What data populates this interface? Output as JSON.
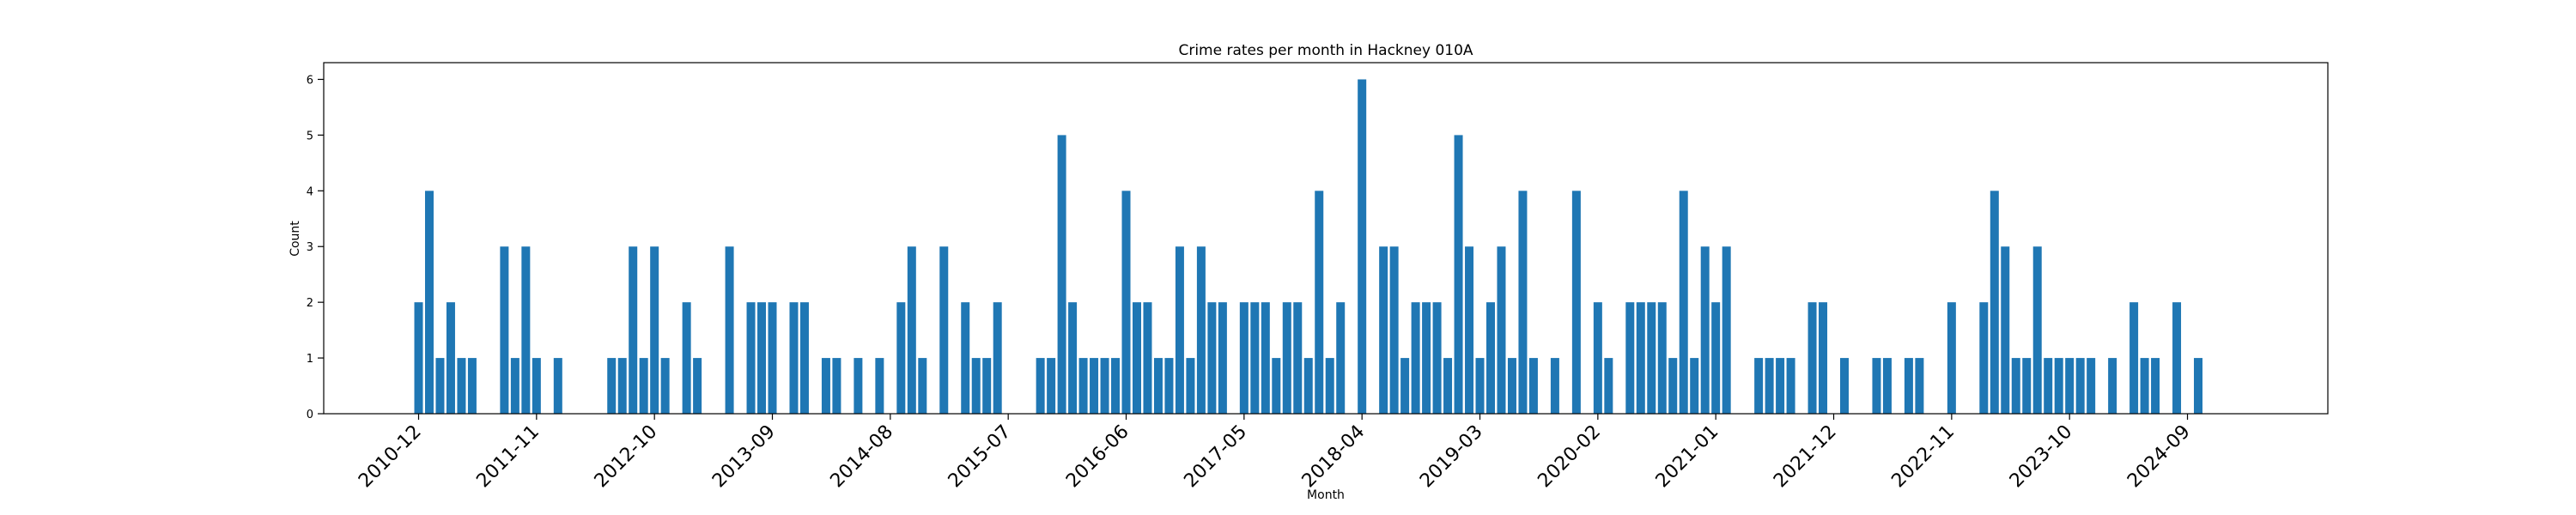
{
  "chart_data": {
    "type": "bar",
    "title": "Crime rates per month in Hackney 010A",
    "xlabel": "Month",
    "ylabel": "Count",
    "ylim": [
      0,
      6.3
    ],
    "yticks": [
      0,
      1,
      2,
      3,
      4,
      5,
      6
    ],
    "xticks": [
      "2010-12",
      "2011-11",
      "2012-10",
      "2013-09",
      "2014-08",
      "2015-07",
      "2016-06",
      "2017-05",
      "2018-04",
      "2019-03",
      "2020-02",
      "2021-01",
      "2021-12",
      "2022-11",
      "2023-10",
      "2024-09"
    ],
    "color": "#1f77b4",
    "grid": false,
    "series": [
      {
        "values": [
          [
            "2010-12",
            2
          ],
          [
            "2011-01",
            4
          ],
          [
            "2011-02",
            1
          ],
          [
            "2011-03",
            2
          ],
          [
            "2011-04",
            1
          ],
          [
            "2011-05",
            1
          ],
          [
            "2011-08",
            3
          ],
          [
            "2011-09",
            1
          ],
          [
            "2011-10",
            3
          ],
          [
            "2011-11",
            1
          ],
          [
            "2012-01",
            1
          ],
          [
            "2012-06",
            1
          ],
          [
            "2012-07",
            1
          ],
          [
            "2012-08",
            3
          ],
          [
            "2012-09",
            1
          ],
          [
            "2012-10",
            3
          ],
          [
            "2012-11",
            1
          ],
          [
            "2013-01",
            2
          ],
          [
            "2013-02",
            1
          ],
          [
            "2013-05",
            3
          ],
          [
            "2013-07",
            2
          ],
          [
            "2013-08",
            2
          ],
          [
            "2013-09",
            2
          ],
          [
            "2013-11",
            2
          ],
          [
            "2013-12",
            2
          ],
          [
            "2014-02",
            1
          ],
          [
            "2014-03",
            1
          ],
          [
            "2014-05",
            1
          ],
          [
            "2014-07",
            1
          ],
          [
            "2014-09",
            2
          ],
          [
            "2014-10",
            3
          ],
          [
            "2014-11",
            1
          ],
          [
            "2015-01",
            3
          ],
          [
            "2015-03",
            2
          ],
          [
            "2015-04",
            1
          ],
          [
            "2015-05",
            1
          ],
          [
            "2015-06",
            2
          ],
          [
            "2015-10",
            1
          ],
          [
            "2015-11",
            1
          ],
          [
            "2015-12",
            5
          ],
          [
            "2016-01",
            2
          ],
          [
            "2016-02",
            1
          ],
          [
            "2016-03",
            1
          ],
          [
            "2016-04",
            1
          ],
          [
            "2016-05",
            1
          ],
          [
            "2016-06",
            4
          ],
          [
            "2016-07",
            2
          ],
          [
            "2016-08",
            2
          ],
          [
            "2016-09",
            1
          ],
          [
            "2016-10",
            1
          ],
          [
            "2016-11",
            3
          ],
          [
            "2016-12",
            1
          ],
          [
            "2017-01",
            3
          ],
          [
            "2017-02",
            2
          ],
          [
            "2017-03",
            2
          ],
          [
            "2017-05",
            2
          ],
          [
            "2017-06",
            2
          ],
          [
            "2017-07",
            2
          ],
          [
            "2017-08",
            1
          ],
          [
            "2017-09",
            2
          ],
          [
            "2017-10",
            2
          ],
          [
            "2017-11",
            1
          ],
          [
            "2017-12",
            4
          ],
          [
            "2018-01",
            1
          ],
          [
            "2018-02",
            2
          ],
          [
            "2018-04",
            6
          ],
          [
            "2018-06",
            3
          ],
          [
            "2018-07",
            3
          ],
          [
            "2018-08",
            1
          ],
          [
            "2018-09",
            2
          ],
          [
            "2018-10",
            2
          ],
          [
            "2018-11",
            2
          ],
          [
            "2018-12",
            1
          ],
          [
            "2019-01",
            5
          ],
          [
            "2019-02",
            3
          ],
          [
            "2019-03",
            1
          ],
          [
            "2019-04",
            2
          ],
          [
            "2019-05",
            3
          ],
          [
            "2019-06",
            1
          ],
          [
            "2019-07",
            4
          ],
          [
            "2019-08",
            1
          ],
          [
            "2019-10",
            1
          ],
          [
            "2019-12",
            4
          ],
          [
            "2020-02",
            2
          ],
          [
            "2020-03",
            1
          ],
          [
            "2020-05",
            2
          ],
          [
            "2020-06",
            2
          ],
          [
            "2020-07",
            2
          ],
          [
            "2020-08",
            2
          ],
          [
            "2020-09",
            1
          ],
          [
            "2020-10",
            4
          ],
          [
            "2020-11",
            1
          ],
          [
            "2020-12",
            3
          ],
          [
            "2021-01",
            2
          ],
          [
            "2021-02",
            3
          ],
          [
            "2021-05",
            1
          ],
          [
            "2021-06",
            1
          ],
          [
            "2021-07",
            1
          ],
          [
            "2021-08",
            1
          ],
          [
            "2021-10",
            2
          ],
          [
            "2021-11",
            2
          ],
          [
            "2022-01",
            1
          ],
          [
            "2022-04",
            1
          ],
          [
            "2022-05",
            1
          ],
          [
            "2022-07",
            1
          ],
          [
            "2022-08",
            1
          ],
          [
            "2022-11",
            2
          ],
          [
            "2023-02",
            2
          ],
          [
            "2023-03",
            4
          ],
          [
            "2023-04",
            3
          ],
          [
            "2023-05",
            1
          ],
          [
            "2023-06",
            1
          ],
          [
            "2023-07",
            3
          ],
          [
            "2023-08",
            1
          ],
          [
            "2023-09",
            1
          ],
          [
            "2023-10",
            1
          ],
          [
            "2023-11",
            1
          ],
          [
            "2023-12",
            1
          ],
          [
            "2024-02",
            1
          ],
          [
            "2024-04",
            2
          ],
          [
            "2024-05",
            1
          ],
          [
            "2024-06",
            1
          ],
          [
            "2024-08",
            2
          ],
          [
            "2024-10",
            1
          ]
        ]
      }
    ]
  }
}
